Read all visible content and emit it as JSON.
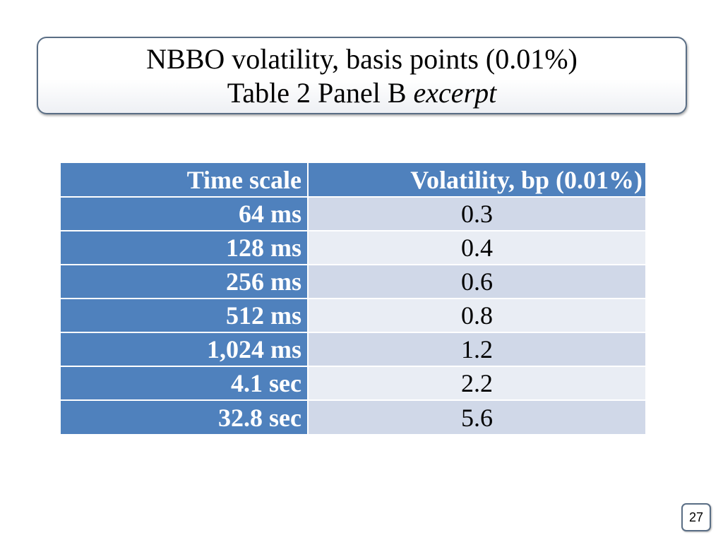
{
  "slide": {
    "title_line1": "NBBO volatility, basis points (0.01%)",
    "title_line2_prefix": "Table 2 Panel B ",
    "title_line2_italic": "excerpt",
    "page_number": "27"
  },
  "table": {
    "headers": [
      "Time scale",
      "Volatility,  bp (0.01%)"
    ],
    "rows": [
      {
        "time_scale": "64 ms",
        "volatility": "0.3"
      },
      {
        "time_scale": "128 ms",
        "volatility": "0.4"
      },
      {
        "time_scale": "256 ms",
        "volatility": "0.6"
      },
      {
        "time_scale": "512 ms",
        "volatility": "0.8"
      },
      {
        "time_scale": "1,024 ms",
        "volatility": "1.2"
      },
      {
        "time_scale": "4.1 sec",
        "volatility": "2.2"
      },
      {
        "time_scale": "32.8 sec",
        "volatility": "5.6"
      }
    ]
  },
  "colors": {
    "header_blue": "#4f81bd",
    "row_light_1": "#d0d8e8",
    "row_light_2": "#e9edf4",
    "frame_border": "#5a6e85"
  }
}
